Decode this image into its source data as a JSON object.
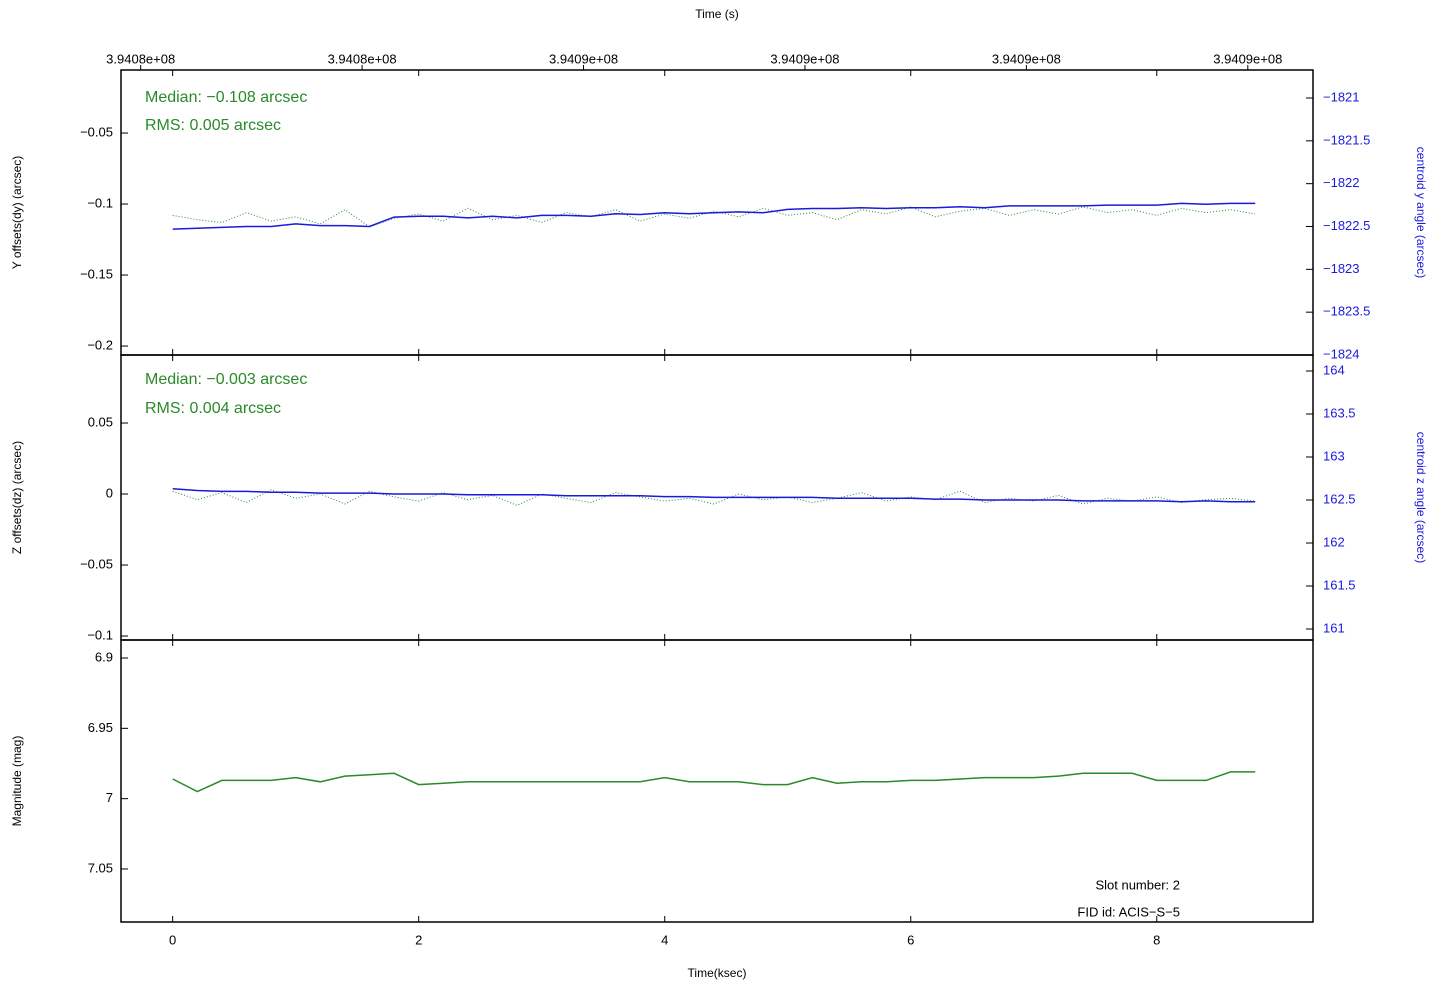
{
  "chart_data": [
    {
      "type": "line",
      "x2label": "Time (s)",
      "x2lim": [
        394081640,
        394091330
      ],
      "x2ticks": [
        {
          "value": 394081800,
          "label": "3.9408e+08"
        },
        {
          "value": 394083600,
          "label": "3.9408e+08"
        },
        {
          "value": 394085400,
          "label": "3.9409e+08"
        },
        {
          "value": 394087200,
          "label": "3.9409e+08"
        },
        {
          "value": 394089000,
          "label": "3.9409e+08"
        },
        {
          "value": 394090800,
          "label": "3.9409e+08"
        }
      ],
      "ylabel": "Y offsets(dy) (arcsec)",
      "ylim": [
        -0.2063,
        -0.0056
      ],
      "yticks": [
        {
          "value": -0.2,
          "label": "−0.2"
        },
        {
          "value": -0.15,
          "label": "−0.15"
        },
        {
          "value": -0.1,
          "label": "−0.1"
        },
        {
          "value": -0.05,
          "label": "−0.05"
        }
      ],
      "y2label": "centroid y angle (arcsec)",
      "y2color": "#1a1adc",
      "y2lim": [
        -1824,
        -1820.673
      ],
      "y2ticks": [
        {
          "value": -1824,
          "label": "−1824"
        },
        {
          "value": -1823.5,
          "label": "−1823.5"
        },
        {
          "value": -1823,
          "label": "−1823"
        },
        {
          "value": -1822.5,
          "label": "−1822.5"
        },
        {
          "value": -1822,
          "label": "−1822"
        },
        {
          "value": -1821.5,
          "label": "−1821.5"
        },
        {
          "value": -1821,
          "label": "−1821"
        }
      ],
      "annotations": [
        {
          "text": "Median: −0.108 arcsec",
          "color": "#2a8a2a"
        },
        {
          "text": "RMS: 0.005 arcsec",
          "color": "#2a8a2a"
        }
      ],
      "x": [
        0,
        0.2,
        0.4,
        0.6,
        0.8,
        1.0,
        1.2,
        1.4,
        1.6,
        1.8,
        2.0,
        2.2,
        2.4,
        2.6,
        2.8,
        3.0,
        3.2,
        3.4,
        3.6,
        3.8,
        4.0,
        4.2,
        4.4,
        4.6,
        4.8,
        5.0,
        5.2,
        5.4,
        5.6,
        5.8,
        6.0,
        6.2,
        6.4,
        6.6,
        6.8,
        7.0,
        7.2,
        7.4,
        7.6,
        7.8,
        8.0,
        8.2,
        8.4,
        8.6,
        8.8
      ],
      "series": [
        {
          "color": "#2a8a2a",
          "style": "dotted",
          "values": [
            -0.108,
            -0.111,
            -0.113,
            -0.106,
            -0.112,
            -0.109,
            -0.114,
            -0.104,
            -0.116,
            -0.11,
            -0.107,
            -0.112,
            -0.103,
            -0.111,
            -0.108,
            -0.113,
            -0.106,
            -0.109,
            -0.104,
            -0.112,
            -0.107,
            -0.11,
            -0.105,
            -0.109,
            -0.103,
            -0.108,
            -0.106,
            -0.111,
            -0.104,
            -0.107,
            -0.102,
            -0.109,
            -0.105,
            -0.103,
            -0.108,
            -0.104,
            -0.107,
            -0.102,
            -0.106,
            -0.104,
            -0.108,
            -0.103,
            -0.106,
            -0.104,
            -0.107
          ]
        },
        {
          "color": "#1a1adc",
          "style": "solid",
          "axis": "y2",
          "values": [
            -1822.53,
            -1822.52,
            -1822.51,
            -1822.5,
            -1822.5,
            -1822.47,
            -1822.49,
            -1822.49,
            -1822.5,
            -1822.39,
            -1822.38,
            -1822.38,
            -1822.4,
            -1822.38,
            -1822.4,
            -1822.37,
            -1822.37,
            -1822.38,
            -1822.35,
            -1822.36,
            -1822.34,
            -1822.35,
            -1822.34,
            -1822.33,
            -1822.34,
            -1822.3,
            -1822.29,
            -1822.29,
            -1822.28,
            -1822.29,
            -1822.28,
            -1822.28,
            -1822.27,
            -1822.28,
            -1822.26,
            -1822.26,
            -1822.26,
            -1822.26,
            -1822.25,
            -1822.25,
            -1822.25,
            -1822.23,
            -1822.24,
            -1822.23,
            -1822.23
          ]
        }
      ]
    },
    {
      "type": "line",
      "ylabel": "Z offsets(dz) (arcsec)",
      "ylim": [
        -0.1028,
        0.0979
      ],
      "yticks": [
        {
          "value": -0.1,
          "label": "−0.1"
        },
        {
          "value": -0.05,
          "label": "−0.05"
        },
        0,
        0.05
      ],
      "y2label": "centroid z angle (arcsec)",
      "y2color": "#1a1adc",
      "y2lim": [
        160.872,
        164.186
      ],
      "y2ticks": [
        161,
        161.5,
        162,
        162.5,
        163,
        163.5,
        164
      ],
      "annotations": [
        {
          "text": "Median: −0.003 arcsec",
          "color": "#2a8a2a"
        },
        {
          "text": "RMS: 0.004 arcsec",
          "color": "#2a8a2a"
        }
      ],
      "x": [
        0,
        0.2,
        0.4,
        0.6,
        0.8,
        1.0,
        1.2,
        1.4,
        1.6,
        1.8,
        2.0,
        2.2,
        2.4,
        2.6,
        2.8,
        3.0,
        3.2,
        3.4,
        3.6,
        3.8,
        4.0,
        4.2,
        4.4,
        4.6,
        4.8,
        5.0,
        5.2,
        5.4,
        5.6,
        5.8,
        6.0,
        6.2,
        6.4,
        6.6,
        6.8,
        7.0,
        7.2,
        7.4,
        7.6,
        7.8,
        8.0,
        8.2,
        8.4,
        8.6,
        8.8
      ],
      "series": [
        {
          "color": "#2a8a2a",
          "style": "dotted",
          "values": [
            0.002,
            -0.004,
            0.001,
            -0.006,
            0.003,
            -0.003,
            0.0,
            -0.007,
            0.002,
            -0.002,
            -0.005,
            0.001,
            -0.004,
            -0.001,
            -0.008,
            0.0,
            -0.003,
            -0.006,
            0.001,
            -0.002,
            -0.005,
            -0.003,
            -0.007,
            0.0,
            -0.004,
            -0.002,
            -0.006,
            -0.003,
            0.001,
            -0.005,
            -0.002,
            -0.004,
            0.002,
            -0.006,
            -0.003,
            -0.005,
            -0.001,
            -0.007,
            -0.003,
            -0.005,
            -0.002,
            -0.006,
            -0.004,
            -0.003,
            -0.005
          ]
        },
        {
          "color": "#1a1adc",
          "style": "solid",
          "axis": "y2",
          "values": [
            162.63,
            162.61,
            162.6,
            162.6,
            162.59,
            162.59,
            162.58,
            162.58,
            162.58,
            162.57,
            162.57,
            162.57,
            162.56,
            162.56,
            162.56,
            162.56,
            162.55,
            162.55,
            162.55,
            162.55,
            162.54,
            162.54,
            162.53,
            162.53,
            162.53,
            162.53,
            162.53,
            162.52,
            162.52,
            162.52,
            162.52,
            162.51,
            162.51,
            162.5,
            162.5,
            162.5,
            162.5,
            162.49,
            162.49,
            162.49,
            162.49,
            162.48,
            162.49,
            162.48,
            162.48
          ]
        }
      ]
    },
    {
      "type": "line",
      "xlabel": "Time(ksec)",
      "xlim": [
        -0.42,
        9.27
      ],
      "xticks": [
        0,
        2,
        4,
        6,
        8
      ],
      "ylabel": "Magnitude (mag)",
      "ylim": [
        7.0877,
        6.8872
      ],
      "yticks": [
        6.9,
        6.95,
        7,
        7.05
      ],
      "annotations": [
        {
          "text": "Slot number: 2",
          "color": "#000000"
        },
        {
          "text": "FID id: ACIS−S−5",
          "color": "#000000"
        }
      ],
      "x": [
        0,
        0.2,
        0.4,
        0.6,
        0.8,
        1.0,
        1.2,
        1.4,
        1.6,
        1.8,
        2.0,
        2.2,
        2.4,
        2.6,
        2.8,
        3.0,
        3.2,
        3.4,
        3.6,
        3.8,
        4.0,
        4.2,
        4.4,
        4.6,
        4.8,
        5.0,
        5.2,
        5.4,
        5.6,
        5.8,
        6.0,
        6.2,
        6.4,
        6.6,
        6.8,
        7.0,
        7.2,
        7.4,
        7.6,
        7.8,
        8.0,
        8.2,
        8.4,
        8.6,
        8.8
      ],
      "series": [
        {
          "color": "#2a8a2a",
          "style": "solid",
          "values": [
            6.986,
            6.995,
            6.987,
            6.987,
            6.987,
            6.985,
            6.988,
            6.984,
            6.983,
            6.982,
            6.99,
            6.989,
            6.988,
            6.988,
            6.988,
            6.988,
            6.988,
            6.988,
            6.988,
            6.988,
            6.985,
            6.988,
            6.988,
            6.988,
            6.99,
            6.99,
            6.985,
            6.989,
            6.988,
            6.988,
            6.987,
            6.987,
            6.986,
            6.985,
            6.985,
            6.985,
            6.984,
            6.982,
            6.982,
            6.982,
            6.987,
            6.987,
            6.987,
            6.981,
            6.981
          ]
        }
      ]
    }
  ]
}
